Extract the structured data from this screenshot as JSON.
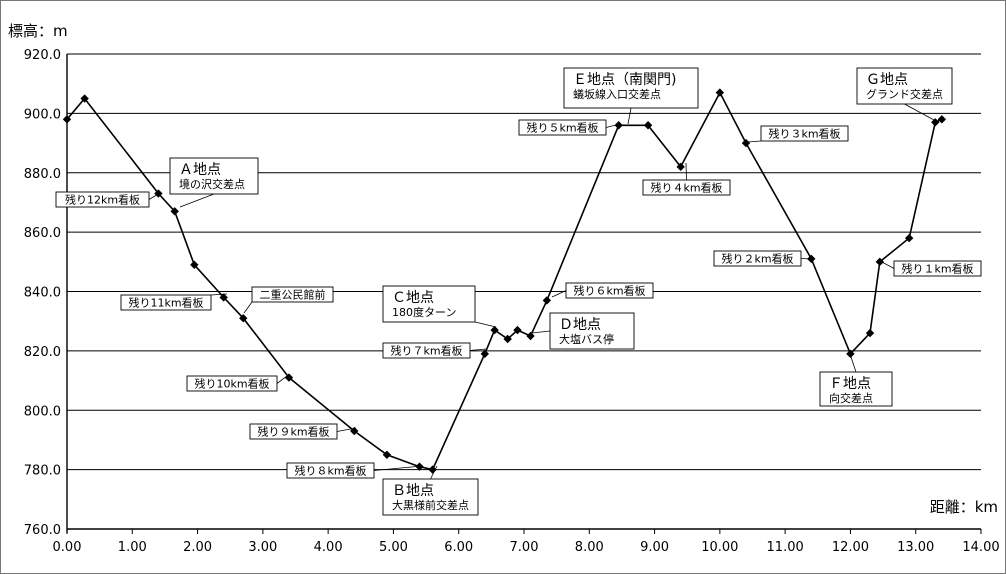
{
  "chart_data": {
    "type": "line",
    "ylabel": "標高：m",
    "xlabel": "距離：km",
    "xlim": [
      0,
      14
    ],
    "ylim": [
      760,
      920
    ],
    "x_ticks": [
      "0.00",
      "1.00",
      "2.00",
      "3.00",
      "4.00",
      "5.00",
      "6.00",
      "7.00",
      "8.00",
      "9.00",
      "10.00",
      "11.00",
      "12.00",
      "13.00",
      "14.00"
    ],
    "y_ticks": [
      "760.0",
      "780.0",
      "800.0",
      "820.0",
      "840.0",
      "860.0",
      "880.0",
      "900.0",
      "920.0"
    ],
    "grid": "horizontal",
    "series": [
      {
        "x": [
          0.0,
          0.27,
          1.4,
          1.65,
          1.95,
          2.4,
          2.7,
          3.4,
          4.4,
          4.9,
          5.4,
          5.6,
          6.4,
          6.55,
          6.75,
          6.9,
          7.1,
          7.35,
          8.45,
          8.9,
          9.4,
          10.0,
          10.4,
          11.4,
          12.0,
          12.3,
          12.45,
          12.9,
          13.3,
          13.4
        ],
        "y": [
          898,
          905,
          873,
          867,
          849,
          838,
          831,
          811,
          793,
          785,
          781,
          780,
          819,
          827,
          824,
          827,
          825,
          837,
          896,
          896,
          882,
          907,
          890,
          851,
          819,
          826,
          850,
          858,
          897,
          898
        ]
      }
    ],
    "annotations": {
      "callouts": [
        {
          "text": "残り12km看板"
        },
        {
          "text": "残り11km看板"
        },
        {
          "text": "二重公民館前"
        },
        {
          "text": "残り10km看板"
        },
        {
          "text": "残り９km看板"
        },
        {
          "text": "残り８km看板"
        },
        {
          "text": "残り７km看板"
        },
        {
          "text": "残り６km看板"
        },
        {
          "text": "残り５km看板"
        },
        {
          "text": "残り４km看板"
        },
        {
          "text": "残り３km看板"
        },
        {
          "text": "残り２km看板"
        },
        {
          "text": "残り１km看板"
        }
      ],
      "points": [
        {
          "title": "Ａ地点",
          "sub": "境の沢交差点"
        },
        {
          "title": "Ｂ地点",
          "sub": "大黒様前交差点"
        },
        {
          "title": "Ｃ地点",
          "sub": "180度ターン"
        },
        {
          "title": "Ｄ地点",
          "sub": "大塩バス停"
        },
        {
          "title": "Ｅ地点（南関門)",
          "sub": "蟻坂線入口交差点"
        },
        {
          "title": "Ｆ地点",
          "sub": "向交差点"
        },
        {
          "title": "Ｇ地点",
          "sub": "グランド交差点"
        }
      ]
    }
  }
}
